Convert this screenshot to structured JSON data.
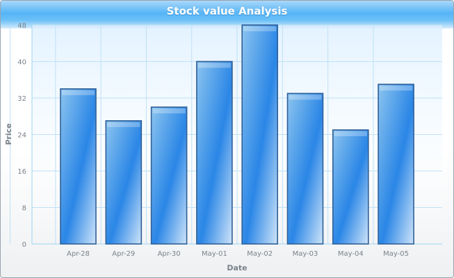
{
  "chart_data": {
    "type": "bar",
    "title": "Stock value Analysis",
    "xlabel": "Date",
    "ylabel": "Price",
    "categories": [
      "Apr-28",
      "Apr-29",
      "Apr-30",
      "May-01",
      "May-02",
      "May-03",
      "May-04",
      "May-05"
    ],
    "values": [
      34,
      27,
      30,
      40,
      48,
      33,
      25,
      35
    ],
    "ylim": [
      0,
      48
    ],
    "yticks": [
      "0",
      "8",
      "16",
      "24",
      "32",
      "40",
      "48"
    ],
    "grid": true,
    "legend": "none",
    "colors": {
      "bar_fill": "#2a86e6",
      "bar_light": "#cfe4f8",
      "bar_stroke": "#2f5f97",
      "grid": "#bfe0f5",
      "axis_line": "#9fd3f2",
      "text": "#7a828a"
    }
  }
}
